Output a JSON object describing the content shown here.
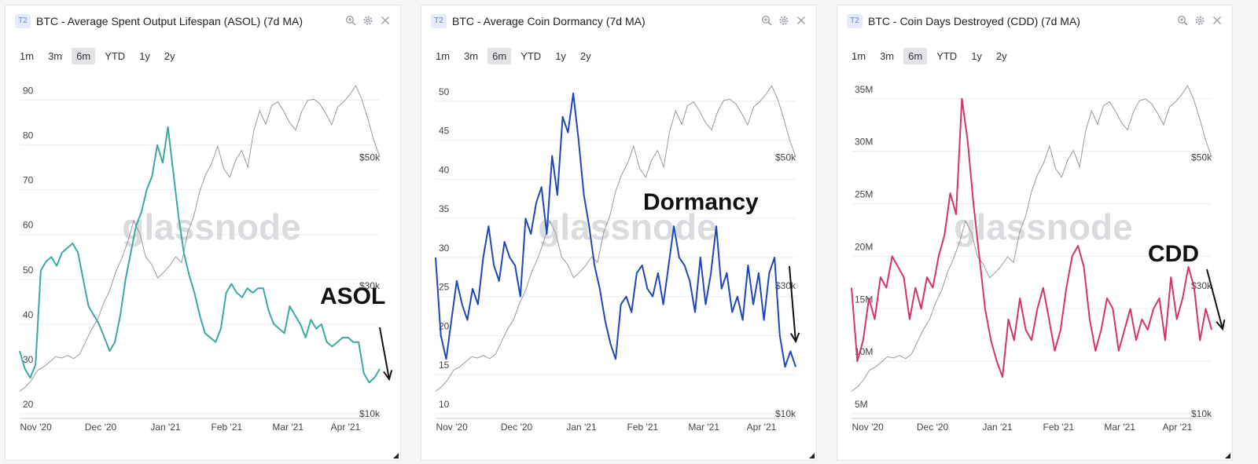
{
  "timeframes": [
    "1m",
    "3m",
    "6m",
    "YTD",
    "1y",
    "2y"
  ],
  "active_timeframe": "6m",
  "watermark": "glassnode",
  "colors": {
    "price": "#9a9a9a",
    "asol": "#3aa9a0",
    "dormancy": "#1f47b7",
    "cdd": "#d4336b"
  },
  "chart_data": [
    {
      "type": "line",
      "badge": "T2",
      "title": "BTC - Average Spent Output Lifespan (ASOL) (7d MA)",
      "annotation": "ASOL",
      "x_ticks": [
        "Nov '20",
        "Dec '20",
        "Jan '21",
        "Feb '21",
        "Mar '21",
        "Apr '21"
      ],
      "ylim": [
        20,
        95
      ],
      "y_ticks": [
        20,
        30,
        40,
        50,
        60,
        70,
        80,
        90
      ],
      "y_tick_labels": [
        "20",
        "30",
        "40",
        "50",
        "60",
        "70",
        "80",
        "90"
      ],
      "price_ticks": [
        "$10k",
        "$30k",
        "$50k"
      ],
      "series": [
        {
          "name": "ASOL",
          "color": "#3aa9a0",
          "values": [
            34,
            30,
            28,
            31,
            52,
            54,
            55,
            53,
            56,
            57,
            58,
            56,
            50,
            44,
            42,
            40,
            37,
            34,
            36,
            42,
            50,
            56,
            62,
            65,
            70,
            73,
            80,
            76,
            84,
            74,
            64,
            56,
            51,
            47,
            42,
            38,
            37,
            36,
            39,
            47,
            49,
            47,
            46,
            48,
            47,
            48,
            48,
            43,
            40,
            39,
            38,
            44,
            42,
            40,
            37,
            41,
            39,
            40,
            36,
            35,
            36,
            37,
            37,
            36,
            36,
            29,
            27,
            28,
            30
          ]
        }
      ],
      "price": {
        "name": "BTC Price",
        "unit": "USD",
        "range": [
          10000,
          60000
        ],
        "values": [
          13500,
          14200,
          15300,
          16800,
          17300,
          18100,
          18900,
          18700,
          19100,
          18600,
          19300,
          21300,
          23200,
          24700,
          27300,
          29200,
          32100,
          34200,
          36800,
          40100,
          38200,
          34500,
          33300,
          31200,
          32100,
          33100,
          34500,
          33600,
          38300,
          40800,
          44700,
          47300,
          49100,
          51800,
          48300,
          46900,
          49600,
          51100,
          48500,
          54100,
          57300,
          55200,
          58100,
          58700,
          57200,
          55400,
          54300,
          57200,
          58900,
          59100,
          58400,
          56900,
          55100,
          57900,
          58700,
          59800,
          61200,
          59100,
          56100,
          52700,
          50100
        ]
      }
    },
    {
      "type": "line",
      "badge": "T2",
      "title": "BTC - Average Coin Dormancy (7d MA)",
      "annotation": "Dormancy",
      "x_ticks": [
        "Nov '20",
        "Dec '20",
        "Jan '21",
        "Feb '21",
        "Mar '21",
        "Apr '21"
      ],
      "ylim": [
        10,
        53
      ],
      "y_ticks": [
        10,
        15,
        20,
        25,
        30,
        35,
        40,
        45,
        50
      ],
      "y_tick_labels": [
        "10",
        "15",
        "20",
        "25",
        "30",
        "35",
        "40",
        "45",
        "50"
      ],
      "price_ticks": [
        "$10k",
        "$30k",
        "$50k"
      ],
      "series": [
        {
          "name": "Dormancy",
          "color": "#1f47b7",
          "values": [
            30,
            20,
            17,
            22,
            27,
            24,
            22,
            26,
            24,
            30,
            34,
            29,
            27,
            32,
            30,
            29,
            25,
            35,
            33,
            37,
            39,
            33,
            43,
            38,
            48,
            46,
            51,
            45,
            38,
            34,
            29,
            26,
            22,
            19,
            17,
            24,
            25,
            23,
            28,
            29,
            26,
            25,
            28,
            24,
            29,
            34,
            30,
            29,
            27,
            23,
            30,
            24,
            28,
            34,
            26,
            28,
            23,
            25,
            22,
            29,
            24,
            28,
            22,
            28,
            30,
            20,
            16,
            18,
            16
          ]
        }
      ],
      "price": {
        "name": "BTC Price",
        "unit": "USD",
        "range": [
          10000,
          60000
        ],
        "values": [
          13500,
          14200,
          15300,
          16800,
          17300,
          18100,
          18900,
          18700,
          19100,
          18600,
          19300,
          21300,
          23200,
          24700,
          27300,
          29200,
          32100,
          34200,
          36800,
          40100,
          38200,
          34500,
          33300,
          31200,
          32100,
          33100,
          34500,
          33600,
          38300,
          40800,
          44700,
          47300,
          49100,
          51800,
          48300,
          46900,
          49600,
          51100,
          48500,
          54100,
          57300,
          55200,
          58100,
          58700,
          57200,
          55400,
          54300,
          57200,
          58900,
          59100,
          58400,
          56900,
          55100,
          57900,
          58700,
          59800,
          61200,
          59100,
          56100,
          52700,
          50100
        ]
      }
    },
    {
      "type": "line",
      "badge": "T2",
      "title": "BTC - Coin Days Destroyed (CDD) (7d MA)",
      "annotation": "CDD",
      "x_ticks": [
        "Nov '20",
        "Dec '20",
        "Jan '21",
        "Feb '21",
        "Mar '21",
        "Apr '21"
      ],
      "ylim": [
        5000000,
        37000000
      ],
      "y_ticks": [
        5000000,
        10000000,
        15000000,
        20000000,
        25000000,
        30000000,
        35000000
      ],
      "y_tick_labels": [
        "5M",
        "10M",
        "15M",
        "20M",
        "25M",
        "30M",
        "35M"
      ],
      "price_ticks": [
        "$10k",
        "$30k",
        "$50k"
      ],
      "series": [
        {
          "name": "CDD",
          "color": "#d4336b",
          "values": [
            17000000,
            10000000,
            12000000,
            16000000,
            14000000,
            18000000,
            17000000,
            20000000,
            19000000,
            18000000,
            14000000,
            17000000,
            15000000,
            18000000,
            17000000,
            20000000,
            22000000,
            26000000,
            24000000,
            35000000,
            31000000,
            25000000,
            20000000,
            15000000,
            12000000,
            10000000,
            8500000,
            14000000,
            12000000,
            16000000,
            13000000,
            12000000,
            15000000,
            17000000,
            14000000,
            11000000,
            13000000,
            17000000,
            20000000,
            21000000,
            19000000,
            14000000,
            11000000,
            13000000,
            16000000,
            15000000,
            11000000,
            13000000,
            15000000,
            12000000,
            14000000,
            13000000,
            15000000,
            16000000,
            12000000,
            18000000,
            14000000,
            16000000,
            19000000,
            17000000,
            12000000,
            15000000,
            13000000
          ]
        }
      ],
      "price": {
        "name": "BTC Price",
        "unit": "USD",
        "range": [
          10000,
          60000
        ],
        "values": [
          13500,
          14200,
          15300,
          16800,
          17300,
          18100,
          18900,
          18700,
          19100,
          18600,
          19300,
          21300,
          23200,
          24700,
          27300,
          29200,
          32100,
          34200,
          36800,
          40100,
          38200,
          34500,
          33300,
          31200,
          32100,
          33100,
          34500,
          33600,
          38300,
          40800,
          44700,
          47300,
          49100,
          51800,
          48300,
          46900,
          49600,
          51100,
          48500,
          54100,
          57300,
          55200,
          58100,
          58700,
          57200,
          55400,
          54300,
          57200,
          58900,
          59100,
          58400,
          56900,
          55100,
          57900,
          58700,
          59800,
          61200,
          59100,
          56100,
          52700,
          50100
        ]
      }
    }
  ]
}
